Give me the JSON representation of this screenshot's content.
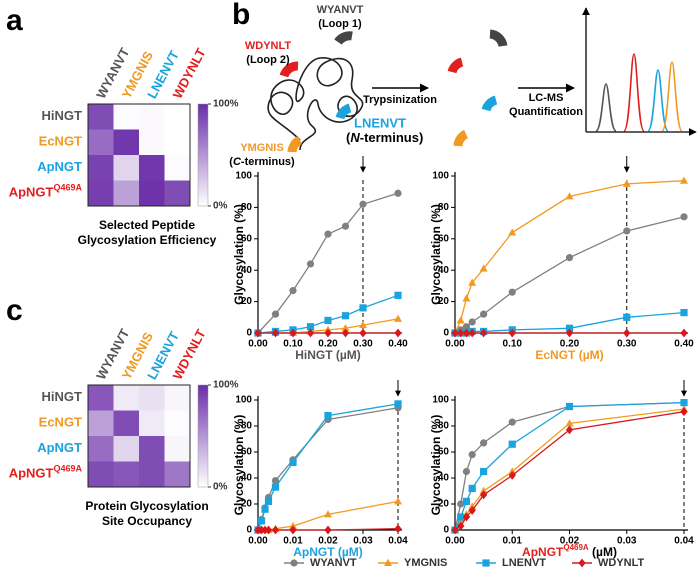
{
  "panel_labels": [
    "a",
    "b",
    "c"
  ],
  "schematic": {
    "loop1": {
      "peptide": "WYANVT",
      "site": "(Loop 1)"
    },
    "loop2": {
      "peptide": "WDYNLT",
      "site": "(Loop 2)"
    },
    "n_terminus": {
      "peptide": "LNENVT",
      "site": [
        "(",
        "N",
        "-terminus)"
      ]
    },
    "c_terminus": {
      "peptide": "YMGNIS",
      "site": [
        "(",
        "C",
        "-terminus)"
      ]
    },
    "step1": "Trypsinization",
    "step2": [
      "LC-MS",
      "Quantification"
    ]
  },
  "chart_data": [
    {
      "type": "heatmap",
      "caption": [
        "Selected Peptide",
        "Glycosylation Efficiency"
      ],
      "x_categories": [
        "WYANVT",
        "YMGNIS",
        "LNENVT",
        "WDYNLT"
      ],
      "x_category_colors": [
        "#555555",
        "#f09a24",
        "#1ba3dd",
        "#e21f1f"
      ],
      "y_categories": [
        "HiNGT",
        "EcNGT",
        "ApNGT",
        "ApNGT"
      ],
      "y_category_superscripts": [
        null,
        null,
        null,
        "Q469A"
      ],
      "y_category_colors": [
        "#555555",
        "#f09a24",
        "#1ba3dd",
        "#e21f1f"
      ],
      "values": [
        [
          85,
          2,
          3,
          0
        ],
        [
          70,
          95,
          3,
          0
        ],
        [
          90,
          20,
          95,
          2
        ],
        [
          92,
          45,
          97,
          85
        ]
      ],
      "zlim": [
        0,
        100
      ],
      "colormap": [
        "#ffffff",
        "#6a2da8"
      ],
      "colorbar_ticks": [
        {
          "value": 100,
          "label": "100%"
        },
        {
          "value": 0,
          "label": "0%"
        }
      ]
    },
    {
      "type": "heatmap",
      "caption": [
        "Protein Glycosylation",
        "Site Occupancy"
      ],
      "x_categories": [
        "WYANVT",
        "YMGNIS",
        "LNENVT",
        "WDYNLT"
      ],
      "x_category_colors": [
        "#555555",
        "#f09a24",
        "#1ba3dd",
        "#e21f1f"
      ],
      "y_categories": [
        "HiNGT",
        "EcNGT",
        "ApNGT",
        "ApNGT"
      ],
      "y_category_superscripts": [
        null,
        null,
        null,
        "Q469A"
      ],
      "y_category_colors": [
        "#555555",
        "#f09a24",
        "#1ba3dd",
        "#e21f1f"
      ],
      "values": [
        [
          80,
          10,
          15,
          5
        ],
        [
          45,
          85,
          10,
          2
        ],
        [
          70,
          20,
          85,
          5
        ],
        [
          85,
          80,
          85,
          65
        ]
      ],
      "zlim": [
        0,
        100
      ],
      "colormap": [
        "#ffffff",
        "#6a2da8"
      ],
      "colorbar_ticks": [
        {
          "value": 100,
          "label": "100%"
        },
        {
          "value": 0,
          "label": "0%"
        }
      ]
    },
    {
      "type": "line",
      "xlabel": "HiNGT (µM)",
      "xlabel_color": "#555555",
      "ylabel": "Glycosylation (%)",
      "x": [
        0,
        0.05,
        0.1,
        0.15,
        0.2,
        0.25,
        0.3,
        0.4
      ],
      "series": [
        {
          "name": "WYANVT",
          "color": "#808080",
          "marker": "circle",
          "values": [
            0,
            12,
            27,
            44,
            63,
            68,
            82,
            89
          ]
        },
        {
          "name": "YMGNIS",
          "color": "#f29a1f",
          "marker": "triangle",
          "values": [
            0,
            0,
            0,
            1,
            2,
            3,
            5,
            9
          ]
        },
        {
          "name": "LNENVT",
          "color": "#1ba3dd",
          "marker": "square",
          "values": [
            0,
            1,
            2,
            4,
            8,
            11,
            16,
            24
          ]
        },
        {
          "name": "WDYNLT",
          "color": "#d7191c",
          "marker": "diamond",
          "values": [
            0,
            0,
            0,
            0,
            0,
            0,
            0,
            0
          ]
        }
      ],
      "xlim": [
        0,
        0.4
      ],
      "xticks": [
        {
          "value": 0,
          "label": "0.00"
        },
        {
          "value": 0.1,
          "label": "0.10"
        },
        {
          "value": 0.2,
          "label": "0.20"
        },
        {
          "value": 0.3,
          "label": "0.30"
        },
        {
          "value": 0.4,
          "label": "0.40"
        }
      ],
      "ylim": [
        0,
        100
      ],
      "yticks": [
        0,
        20,
        40,
        60,
        80,
        100
      ],
      "reference_line": 0.3
    },
    {
      "type": "line",
      "xlabel": "EcNGT (µM)",
      "xlabel_color": "#f09a24",
      "ylabel": "Glycosylation (%)",
      "x": [
        0,
        0.01,
        0.02,
        0.03,
        0.05,
        0.1,
        0.2,
        0.3,
        0.4
      ],
      "series": [
        {
          "name": "WYANVT",
          "color": "#808080",
          "marker": "circle",
          "values": [
            0,
            2,
            4,
            7,
            12,
            26,
            48,
            65,
            74
          ]
        },
        {
          "name": "YMGNIS",
          "color": "#f29a1f",
          "marker": "triangle",
          "values": [
            0,
            8,
            22,
            32,
            41,
            64,
            87,
            95,
            97
          ]
        },
        {
          "name": "LNENVT",
          "color": "#1ba3dd",
          "marker": "square",
          "values": [
            0,
            0,
            0,
            1,
            1,
            2,
            3,
            10,
            13
          ]
        },
        {
          "name": "WDYNLT",
          "color": "#d7191c",
          "marker": "diamond",
          "values": [
            0,
            0,
            0,
            0,
            0,
            0,
            0,
            0,
            0
          ]
        }
      ],
      "xlim": [
        0,
        0.4
      ],
      "xticks": [
        {
          "value": 0,
          "label": "0.00"
        },
        {
          "value": 0.1,
          "label": "0.10"
        },
        {
          "value": 0.2,
          "label": "0.20"
        },
        {
          "value": 0.3,
          "label": "0.30"
        },
        {
          "value": 0.4,
          "label": "0.40"
        }
      ],
      "ylim": [
        0,
        100
      ],
      "yticks": [
        0,
        20,
        40,
        60,
        80,
        100
      ],
      "reference_line": 0.3
    },
    {
      "type": "line",
      "xlabel": "ApNGT (µM)",
      "xlabel_color": "#1ba3dd",
      "ylabel": "Glycosylation (%)",
      "x": [
        0,
        0.001,
        0.002,
        0.003,
        0.005,
        0.01,
        0.02,
        0.04
      ],
      "series": [
        {
          "name": "WYANVT",
          "color": "#808080",
          "marker": "circle",
          "values": [
            0,
            8,
            17,
            25,
            38,
            54,
            85,
            94
          ]
        },
        {
          "name": "YMGNIS",
          "color": "#f29a1f",
          "marker": "triangle",
          "values": [
            0,
            0,
            0,
            0,
            1,
            3,
            12,
            22
          ]
        },
        {
          "name": "LNENVT",
          "color": "#1ba3dd",
          "marker": "square",
          "values": [
            0,
            7,
            16,
            22,
            33,
            52,
            88,
            97
          ]
        },
        {
          "name": "WDYNLT",
          "color": "#d7191c",
          "marker": "diamond",
          "values": [
            0,
            0,
            0,
            0,
            0,
            0,
            0,
            1
          ]
        }
      ],
      "xlim": [
        0,
        0.04
      ],
      "xticks": [
        {
          "value": 0,
          "label": "0.00"
        },
        {
          "value": 0.01,
          "label": "0.01"
        },
        {
          "value": 0.02,
          "label": "0.02"
        },
        {
          "value": 0.03,
          "label": "0.03"
        },
        {
          "value": 0.04,
          "label": "0.04"
        }
      ],
      "ylim": [
        0,
        100
      ],
      "yticks": [
        0,
        20,
        40,
        60,
        80,
        100
      ],
      "reference_line": 0.04
    },
    {
      "type": "line",
      "xlabel": "ApNGT",
      "xlabel_superscript": "Q469A",
      "xlabel_suffix": " (µM)",
      "xlabel_color": "#e21f1f",
      "ylabel": "Glycosylation (%)",
      "x": [
        0,
        0.001,
        0.002,
        0.003,
        0.005,
        0.01,
        0.02,
        0.04
      ],
      "series": [
        {
          "name": "WYANVT",
          "color": "#808080",
          "marker": "circle",
          "values": [
            0,
            20,
            45,
            58,
            67,
            83,
            95,
            98
          ]
        },
        {
          "name": "YMGNIS",
          "color": "#f29a1f",
          "marker": "triangle",
          "values": [
            0,
            5,
            12,
            18,
            30,
            45,
            82,
            93
          ]
        },
        {
          "name": "LNENVT",
          "color": "#1ba3dd",
          "marker": "square",
          "values": [
            0,
            10,
            22,
            32,
            45,
            66,
            95,
            98
          ]
        },
        {
          "name": "WDYNLT",
          "color": "#d7191c",
          "marker": "diamond",
          "values": [
            0,
            3,
            10,
            15,
            27,
            42,
            77,
            91
          ]
        }
      ],
      "xlim": [
        0,
        0.04
      ],
      "xticks": [
        {
          "value": 0,
          "label": "0.00"
        },
        {
          "value": 0.01,
          "label": "0.01"
        },
        {
          "value": 0.02,
          "label": "0.02"
        },
        {
          "value": 0.03,
          "label": "0.03"
        },
        {
          "value": 0.04,
          "label": "0.04"
        }
      ],
      "ylim": [
        0,
        100
      ],
      "yticks": [
        0,
        20,
        40,
        60,
        80,
        100
      ],
      "reference_line": 0.04
    }
  ]
}
